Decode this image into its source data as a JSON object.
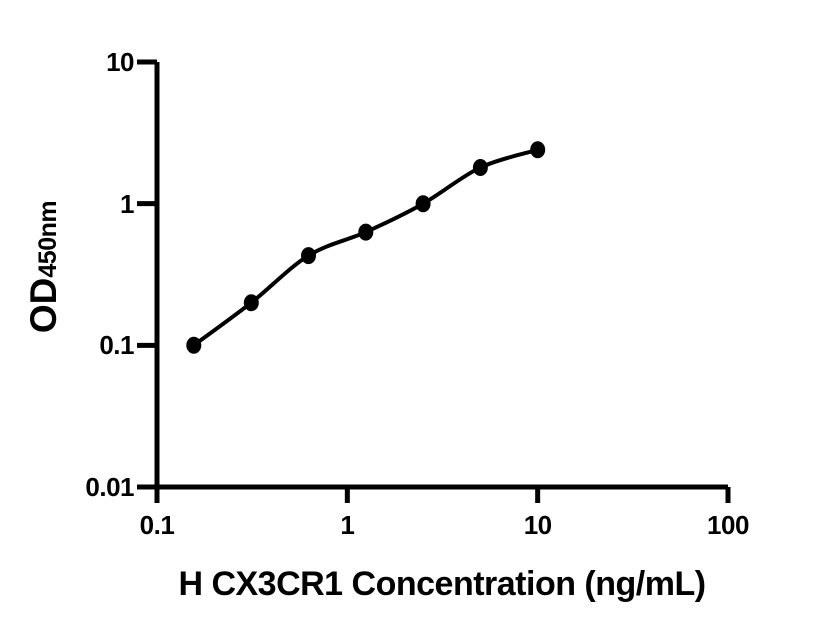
{
  "figure": {
    "background": "#ffffff",
    "ink": "#000000"
  },
  "chart_data": {
    "type": "scatter",
    "xscale": "log",
    "yscale": "log",
    "title": "",
    "xlabel": "H CX3CR1 Concentration (ng/mL)",
    "ylabel": "OD",
    "ylabel_subscript": "450nm",
    "xlim": [
      0.1,
      100
    ],
    "ylim": [
      0.01,
      10
    ],
    "xticks": [
      "0.1",
      "1",
      "10",
      "100"
    ],
    "yticks": [
      "10",
      "1",
      "0.1",
      "0.01"
    ],
    "grid": "off",
    "legend": "none",
    "marker": "filled-circle",
    "marker_color": "#000000",
    "line_color": "#000000",
    "curve_style": "smooth-fit-through-points",
    "x": [
      0.156,
      0.313,
      0.625,
      1.25,
      2.5,
      5,
      10
    ],
    "y": [
      0.1,
      0.2,
      0.43,
      0.63,
      1.0,
      1.8,
      2.4
    ]
  }
}
